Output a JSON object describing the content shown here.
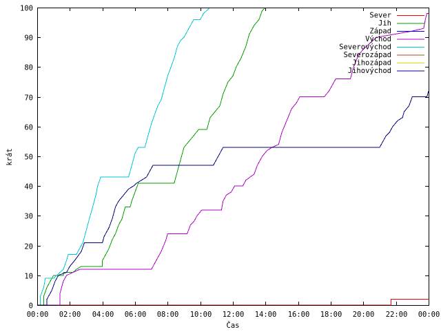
{
  "chart_data": {
    "type": "line",
    "title": "",
    "xlabel": "Čas",
    "ylabel": "krát",
    "xlim": [
      0,
      24
    ],
    "ylim": [
      0,
      100
    ],
    "grid": false,
    "legend_position": "top-right",
    "x_tick_labels": [
      "00:00",
      "02:00",
      "04:00",
      "06:00",
      "08:00",
      "10:00",
      "12:00",
      "14:00",
      "16:00",
      "18:00",
      "20:00",
      "22:00",
      "00:00"
    ],
    "y_tick_labels": [
      "0",
      "10",
      "20",
      "30",
      "40",
      "50",
      "60",
      "70",
      "80",
      "90",
      "100"
    ],
    "series": [
      {
        "name": "Sever",
        "color": "#ff0000",
        "points": [
          [
            0,
            0
          ],
          [
            21.7,
            0
          ],
          [
            21.7,
            2
          ],
          [
            24,
            2
          ]
        ]
      },
      {
        "name": "Jih",
        "color": "#00a000",
        "points": [
          [
            0,
            0
          ],
          [
            0.4,
            0
          ],
          [
            0.4,
            3
          ],
          [
            0.6,
            6
          ],
          [
            0.8,
            8
          ],
          [
            1.0,
            10
          ],
          [
            1.6,
            10
          ],
          [
            1.6,
            11
          ],
          [
            2.2,
            11
          ],
          [
            2.4,
            12
          ],
          [
            2.7,
            13
          ],
          [
            3.2,
            13
          ],
          [
            4.0,
            13
          ],
          [
            4.0,
            15
          ],
          [
            4.2,
            17
          ],
          [
            4.4,
            19
          ],
          [
            4.6,
            22
          ],
          [
            4.8,
            24
          ],
          [
            5.0,
            27
          ],
          [
            5.2,
            29
          ],
          [
            5.4,
            33
          ],
          [
            5.7,
            33
          ],
          [
            5.8,
            35
          ],
          [
            6.0,
            38
          ],
          [
            6.2,
            41
          ],
          [
            8.4,
            41
          ],
          [
            8.6,
            45
          ],
          [
            8.8,
            49
          ],
          [
            9.0,
            53
          ],
          [
            9.3,
            55
          ],
          [
            9.6,
            57
          ],
          [
            9.9,
            59
          ],
          [
            10.4,
            59
          ],
          [
            10.6,
            63
          ],
          [
            10.9,
            65
          ],
          [
            11.2,
            67
          ],
          [
            11.4,
            71
          ],
          [
            11.7,
            75
          ],
          [
            12.0,
            77
          ],
          [
            12.2,
            80
          ],
          [
            12.5,
            83
          ],
          [
            12.8,
            87
          ],
          [
            13.0,
            91
          ],
          [
            13.3,
            94
          ],
          [
            13.6,
            96
          ],
          [
            13.8,
            99
          ],
          [
            14.0,
            100
          ]
        ]
      },
      {
        "name": "Západ",
        "color": "#0000ff",
        "points": []
      },
      {
        "name": "Východ",
        "color": "#b000c8",
        "points": [
          [
            0,
            0
          ],
          [
            1.4,
            0
          ],
          [
            1.4,
            4
          ],
          [
            1.6,
            8
          ],
          [
            1.8,
            10
          ],
          [
            2.2,
            11
          ],
          [
            2.6,
            12
          ],
          [
            7.0,
            12
          ],
          [
            7.2,
            14
          ],
          [
            7.4,
            16
          ],
          [
            7.6,
            18
          ],
          [
            7.9,
            22
          ],
          [
            8.0,
            24
          ],
          [
            9.2,
            24
          ],
          [
            9.4,
            27
          ],
          [
            9.6,
            28
          ],
          [
            9.8,
            30
          ],
          [
            10.1,
            32
          ],
          [
            11.3,
            32
          ],
          [
            11.4,
            35
          ],
          [
            11.6,
            37
          ],
          [
            11.9,
            38
          ],
          [
            12.1,
            40
          ],
          [
            12.6,
            40
          ],
          [
            12.8,
            42
          ],
          [
            13.3,
            44
          ],
          [
            13.5,
            47
          ],
          [
            13.8,
            50
          ],
          [
            14.1,
            52
          ],
          [
            14.4,
            53
          ],
          [
            14.8,
            54
          ],
          [
            15.0,
            58
          ],
          [
            15.3,
            62
          ],
          [
            15.6,
            66
          ],
          [
            15.9,
            68
          ],
          [
            16.1,
            70
          ],
          [
            17.6,
            70
          ],
          [
            17.9,
            72
          ],
          [
            18.1,
            74
          ],
          [
            18.3,
            76
          ],
          [
            19.2,
            76
          ],
          [
            19.4,
            80
          ],
          [
            19.7,
            84
          ],
          [
            20.0,
            86
          ],
          [
            20.4,
            88
          ],
          [
            20.8,
            90
          ],
          [
            22.9,
            92
          ],
          [
            23.7,
            93
          ],
          [
            23.8,
            96
          ],
          [
            23.9,
            98
          ],
          [
            24,
            98
          ]
        ]
      },
      {
        "name": "Severovýchod",
        "color": "#00c8d2",
        "points": [
          [
            0,
            0
          ],
          [
            0.2,
            0
          ],
          [
            0.2,
            3
          ],
          [
            0.4,
            6
          ],
          [
            0.5,
            9
          ],
          [
            1.0,
            9
          ],
          [
            1.2,
            10
          ],
          [
            1.6,
            12
          ],
          [
            1.8,
            15
          ],
          [
            1.9,
            17
          ],
          [
            2.4,
            17
          ],
          [
            2.6,
            19
          ],
          [
            2.8,
            21
          ],
          [
            3.0,
            25
          ],
          [
            3.2,
            29
          ],
          [
            3.4,
            33
          ],
          [
            3.6,
            37
          ],
          [
            3.7,
            40
          ],
          [
            3.9,
            43
          ],
          [
            5.6,
            43
          ],
          [
            5.8,
            47
          ],
          [
            6.0,
            51
          ],
          [
            6.2,
            53
          ],
          [
            6.6,
            53
          ],
          [
            6.8,
            57
          ],
          [
            7.0,
            61
          ],
          [
            7.2,
            64
          ],
          [
            7.4,
            67
          ],
          [
            7.6,
            69
          ],
          [
            7.8,
            73
          ],
          [
            8.0,
            77
          ],
          [
            8.2,
            80
          ],
          [
            8.4,
            83
          ],
          [
            8.6,
            87
          ],
          [
            8.8,
            89
          ],
          [
            9.0,
            90
          ],
          [
            9.2,
            92
          ],
          [
            9.4,
            94
          ],
          [
            9.6,
            96
          ],
          [
            10.0,
            96
          ],
          [
            10.2,
            98
          ],
          [
            10.4,
            99
          ],
          [
            10.6,
            100
          ],
          [
            11.0,
            100
          ]
        ]
      },
      {
        "name": "Severozápad",
        "color": "#a05020",
        "points": []
      },
      {
        "name": "Jihozápad",
        "color": "#e0e000",
        "points": []
      },
      {
        "name": "Jihovýchod",
        "color": "#000080",
        "points": [
          [
            0,
            0
          ],
          [
            0.6,
            0
          ],
          [
            0.6,
            2
          ],
          [
            0.9,
            5
          ],
          [
            1.1,
            8
          ],
          [
            1.3,
            10
          ],
          [
            1.8,
            11
          ],
          [
            2.0,
            13
          ],
          [
            2.3,
            15
          ],
          [
            2.7,
            18
          ],
          [
            2.9,
            21
          ],
          [
            4.0,
            21
          ],
          [
            4.1,
            23
          ],
          [
            4.4,
            26
          ],
          [
            4.6,
            29
          ],
          [
            4.8,
            33
          ],
          [
            5.0,
            35
          ],
          [
            5.3,
            37
          ],
          [
            5.6,
            39
          ],
          [
            5.9,
            40
          ],
          [
            6.1,
            41
          ],
          [
            6.7,
            43
          ],
          [
            6.9,
            45
          ],
          [
            7.1,
            47
          ],
          [
            10.8,
            47
          ],
          [
            11.0,
            49
          ],
          [
            11.2,
            51
          ],
          [
            11.4,
            53
          ],
          [
            21.0,
            53
          ],
          [
            21.2,
            55
          ],
          [
            21.4,
            57
          ],
          [
            21.6,
            58
          ],
          [
            21.8,
            60
          ],
          [
            22.1,
            62
          ],
          [
            22.4,
            63
          ],
          [
            22.5,
            65
          ],
          [
            22.8,
            67
          ],
          [
            23.0,
            70
          ],
          [
            23.9,
            70
          ],
          [
            24,
            72
          ]
        ]
      }
    ]
  }
}
